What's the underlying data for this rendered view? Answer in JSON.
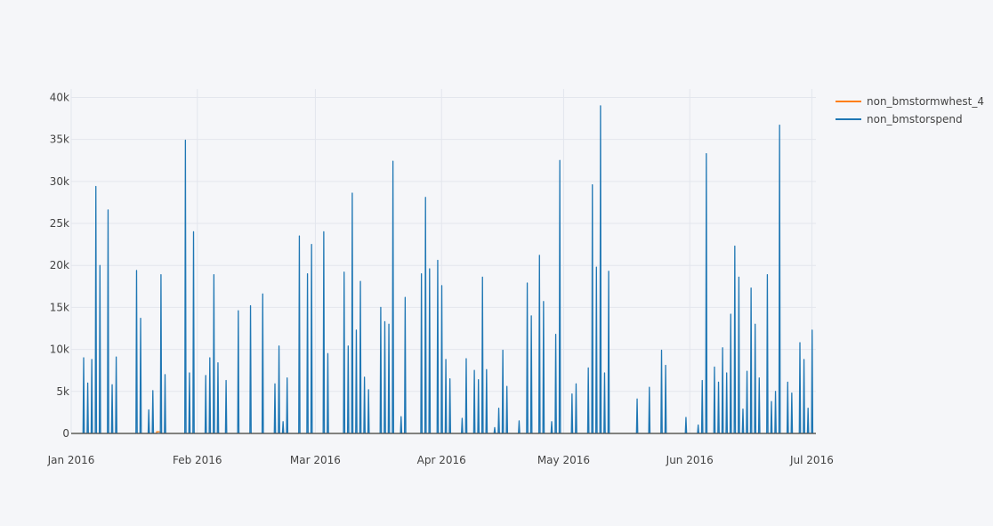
{
  "chart_data": {
    "type": "line",
    "title": "",
    "xlabel": "",
    "ylabel": "",
    "x_range": [
      "2016-01-01",
      "2016-07-02"
    ],
    "ylim": [
      0,
      41000
    ],
    "grid": true,
    "legend_position": "top-right",
    "x_ticks": [
      {
        "date": "2016-01-01",
        "label": "Jan 2016"
      },
      {
        "date": "2016-02-01",
        "label": "Feb 2016"
      },
      {
        "date": "2016-03-01",
        "label": "Mar 2016"
      },
      {
        "date": "2016-04-01",
        "label": "Apr 2016"
      },
      {
        "date": "2016-05-01",
        "label": "May 2016"
      },
      {
        "date": "2016-06-01",
        "label": "Jun 2016"
      },
      {
        "date": "2016-07-01",
        "label": "Jul 2016"
      }
    ],
    "y_ticks": [
      {
        "value": 0,
        "label": "0"
      },
      {
        "value": 5000,
        "label": "5k"
      },
      {
        "value": 10000,
        "label": "10k"
      },
      {
        "value": 15000,
        "label": "15k"
      },
      {
        "value": 20000,
        "label": "20k"
      },
      {
        "value": 25000,
        "label": "25k"
      },
      {
        "value": 30000,
        "label": "30k"
      },
      {
        "value": 35000,
        "label": "35k"
      },
      {
        "value": 40000,
        "label": "40k"
      }
    ],
    "series": [
      {
        "name": "non_bmstormwhest_4",
        "color": "#ff7f0e",
        "points": [
          [
            "2016-01-01",
            0
          ],
          [
            "2016-01-22",
            0
          ],
          [
            "2016-01-22",
            200
          ],
          [
            "2016-01-23",
            200
          ],
          [
            "2016-01-23",
            0
          ],
          [
            "2016-07-02",
            0
          ]
        ]
      },
      {
        "name": "non_bmstorspend",
        "color": "#1f77b4",
        "spikes": [
          [
            "2016-01-04",
            9000
          ],
          [
            "2016-01-05",
            6000
          ],
          [
            "2016-01-06",
            8800
          ],
          [
            "2016-01-07",
            29400
          ],
          [
            "2016-01-08",
            20000
          ],
          [
            "2016-01-08",
            7800
          ],
          [
            "2016-01-10",
            26600
          ],
          [
            "2016-01-11",
            5800
          ],
          [
            "2016-01-12",
            9100
          ],
          [
            "2016-01-17",
            19400
          ],
          [
            "2016-01-18",
            13700
          ],
          [
            "2016-01-20",
            2800
          ],
          [
            "2016-01-21",
            5100
          ],
          [
            "2016-01-23",
            18900
          ],
          [
            "2016-01-24",
            7000
          ],
          [
            "2016-01-29",
            34900
          ],
          [
            "2016-01-30",
            7200
          ],
          [
            "2016-01-31",
            24000
          ],
          [
            "2016-02-03",
            6900
          ],
          [
            "2016-02-04",
            9000
          ],
          [
            "2016-02-05",
            18900
          ],
          [
            "2016-02-06",
            8400
          ],
          [
            "2016-02-08",
            6300
          ],
          [
            "2016-02-11",
            14600
          ],
          [
            "2016-02-14",
            15200
          ],
          [
            "2016-02-17",
            16600
          ],
          [
            "2016-02-20",
            5900
          ],
          [
            "2016-02-21",
            10400
          ],
          [
            "2016-02-22",
            1400
          ],
          [
            "2016-02-23",
            6600
          ],
          [
            "2016-02-26",
            23500
          ],
          [
            "2016-02-28",
            19000
          ],
          [
            "2016-02-29",
            22500
          ],
          [
            "2016-03-03",
            24000
          ],
          [
            "2016-03-04",
            9500
          ],
          [
            "2016-03-08",
            19200
          ],
          [
            "2016-03-09",
            10400
          ],
          [
            "2016-03-10",
            28600
          ],
          [
            "2016-03-11",
            12300
          ],
          [
            "2016-03-12",
            18100
          ],
          [
            "2016-03-13",
            6700
          ],
          [
            "2016-03-14",
            5200
          ],
          [
            "2016-03-17",
            15000
          ],
          [
            "2016-03-18",
            13300
          ],
          [
            "2016-03-19",
            13000
          ],
          [
            "2016-03-20",
            32400
          ],
          [
            "2016-03-22",
            2000
          ],
          [
            "2016-03-23",
            16200
          ],
          [
            "2016-03-27",
            19000
          ],
          [
            "2016-03-28",
            28100
          ],
          [
            "2016-03-29",
            19600
          ],
          [
            "2016-03-31",
            20600
          ],
          [
            "2016-04-01",
            17600
          ],
          [
            "2016-04-02",
            8800
          ],
          [
            "2016-04-03",
            6500
          ],
          [
            "2016-04-06",
            1800
          ],
          [
            "2016-04-07",
            8900
          ],
          [
            "2016-04-09",
            7500
          ],
          [
            "2016-04-10",
            6400
          ],
          [
            "2016-04-11",
            18600
          ],
          [
            "2016-04-12",
            7600
          ],
          [
            "2016-04-14",
            700
          ],
          [
            "2016-04-15",
            3000
          ],
          [
            "2016-04-16",
            9900
          ],
          [
            "2016-04-17",
            5600
          ],
          [
            "2016-04-20",
            1500
          ],
          [
            "2016-04-22",
            17900
          ],
          [
            "2016-04-23",
            14000
          ],
          [
            "2016-04-25",
            21200
          ],
          [
            "2016-04-26",
            15700
          ],
          [
            "2016-04-28",
            1400
          ],
          [
            "2016-04-29",
            11800
          ],
          [
            "2016-04-30",
            32500
          ],
          [
            "2016-05-03",
            4700
          ],
          [
            "2016-05-04",
            5900
          ],
          [
            "2016-05-07",
            7800
          ],
          [
            "2016-05-08",
            29600
          ],
          [
            "2016-05-09",
            19800
          ],
          [
            "2016-05-10",
            39000
          ],
          [
            "2016-05-11",
            7200
          ],
          [
            "2016-05-12",
            19300
          ],
          [
            "2016-05-12",
            6000
          ],
          [
            "2016-05-19",
            4100
          ],
          [
            "2016-05-22",
            5500
          ],
          [
            "2016-05-25",
            9900
          ],
          [
            "2016-05-26",
            8100
          ],
          [
            "2016-05-31",
            1900
          ],
          [
            "2016-06-03",
            1000
          ],
          [
            "2016-06-04",
            6300
          ],
          [
            "2016-06-05",
            33300
          ],
          [
            "2016-06-07",
            7900
          ],
          [
            "2016-06-08",
            6100
          ],
          [
            "2016-06-09",
            10200
          ],
          [
            "2016-06-10",
            7200
          ],
          [
            "2016-06-11",
            14200
          ],
          [
            "2016-06-12",
            22300
          ],
          [
            "2016-06-13",
            18600
          ],
          [
            "2016-06-14",
            2900
          ],
          [
            "2016-06-15",
            7400
          ],
          [
            "2016-06-16",
            17300
          ],
          [
            "2016-06-17",
            13000
          ],
          [
            "2016-06-18",
            6600
          ],
          [
            "2016-06-20",
            18900
          ],
          [
            "2016-06-21",
            3800
          ],
          [
            "2016-06-22",
            5000
          ],
          [
            "2016-06-23",
            36700
          ],
          [
            "2016-06-25",
            6100
          ],
          [
            "2016-06-26",
            4800
          ],
          [
            "2016-06-28",
            10800
          ],
          [
            "2016-06-29",
            8800
          ],
          [
            "2016-06-30",
            3000
          ],
          [
            "2016-07-01",
            12300
          ]
        ]
      }
    ]
  }
}
